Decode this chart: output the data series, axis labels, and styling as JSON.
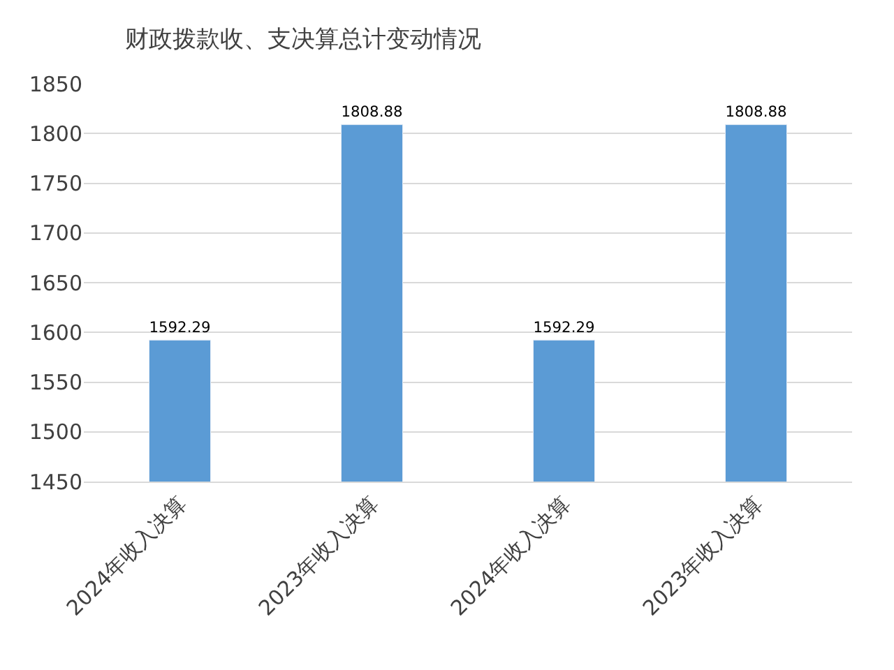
{
  "chart_data": {
    "type": "bar",
    "title": "财政拨款收、支决算总计变动情况",
    "categories": [
      "2024年收入决算",
      "2023年收入决算",
      "2024年收入决算",
      "2023年收入决算"
    ],
    "values": [
      1592.29,
      1808.88,
      1592.29,
      1808.88
    ],
    "color": "#5b9bd5",
    "ylim": [
      1450,
      1850
    ],
    "yticks": [
      1450,
      1500,
      1550,
      1600,
      1650,
      1700,
      1750,
      1800,
      1850
    ],
    "grid": "y",
    "data_labels": true
  }
}
